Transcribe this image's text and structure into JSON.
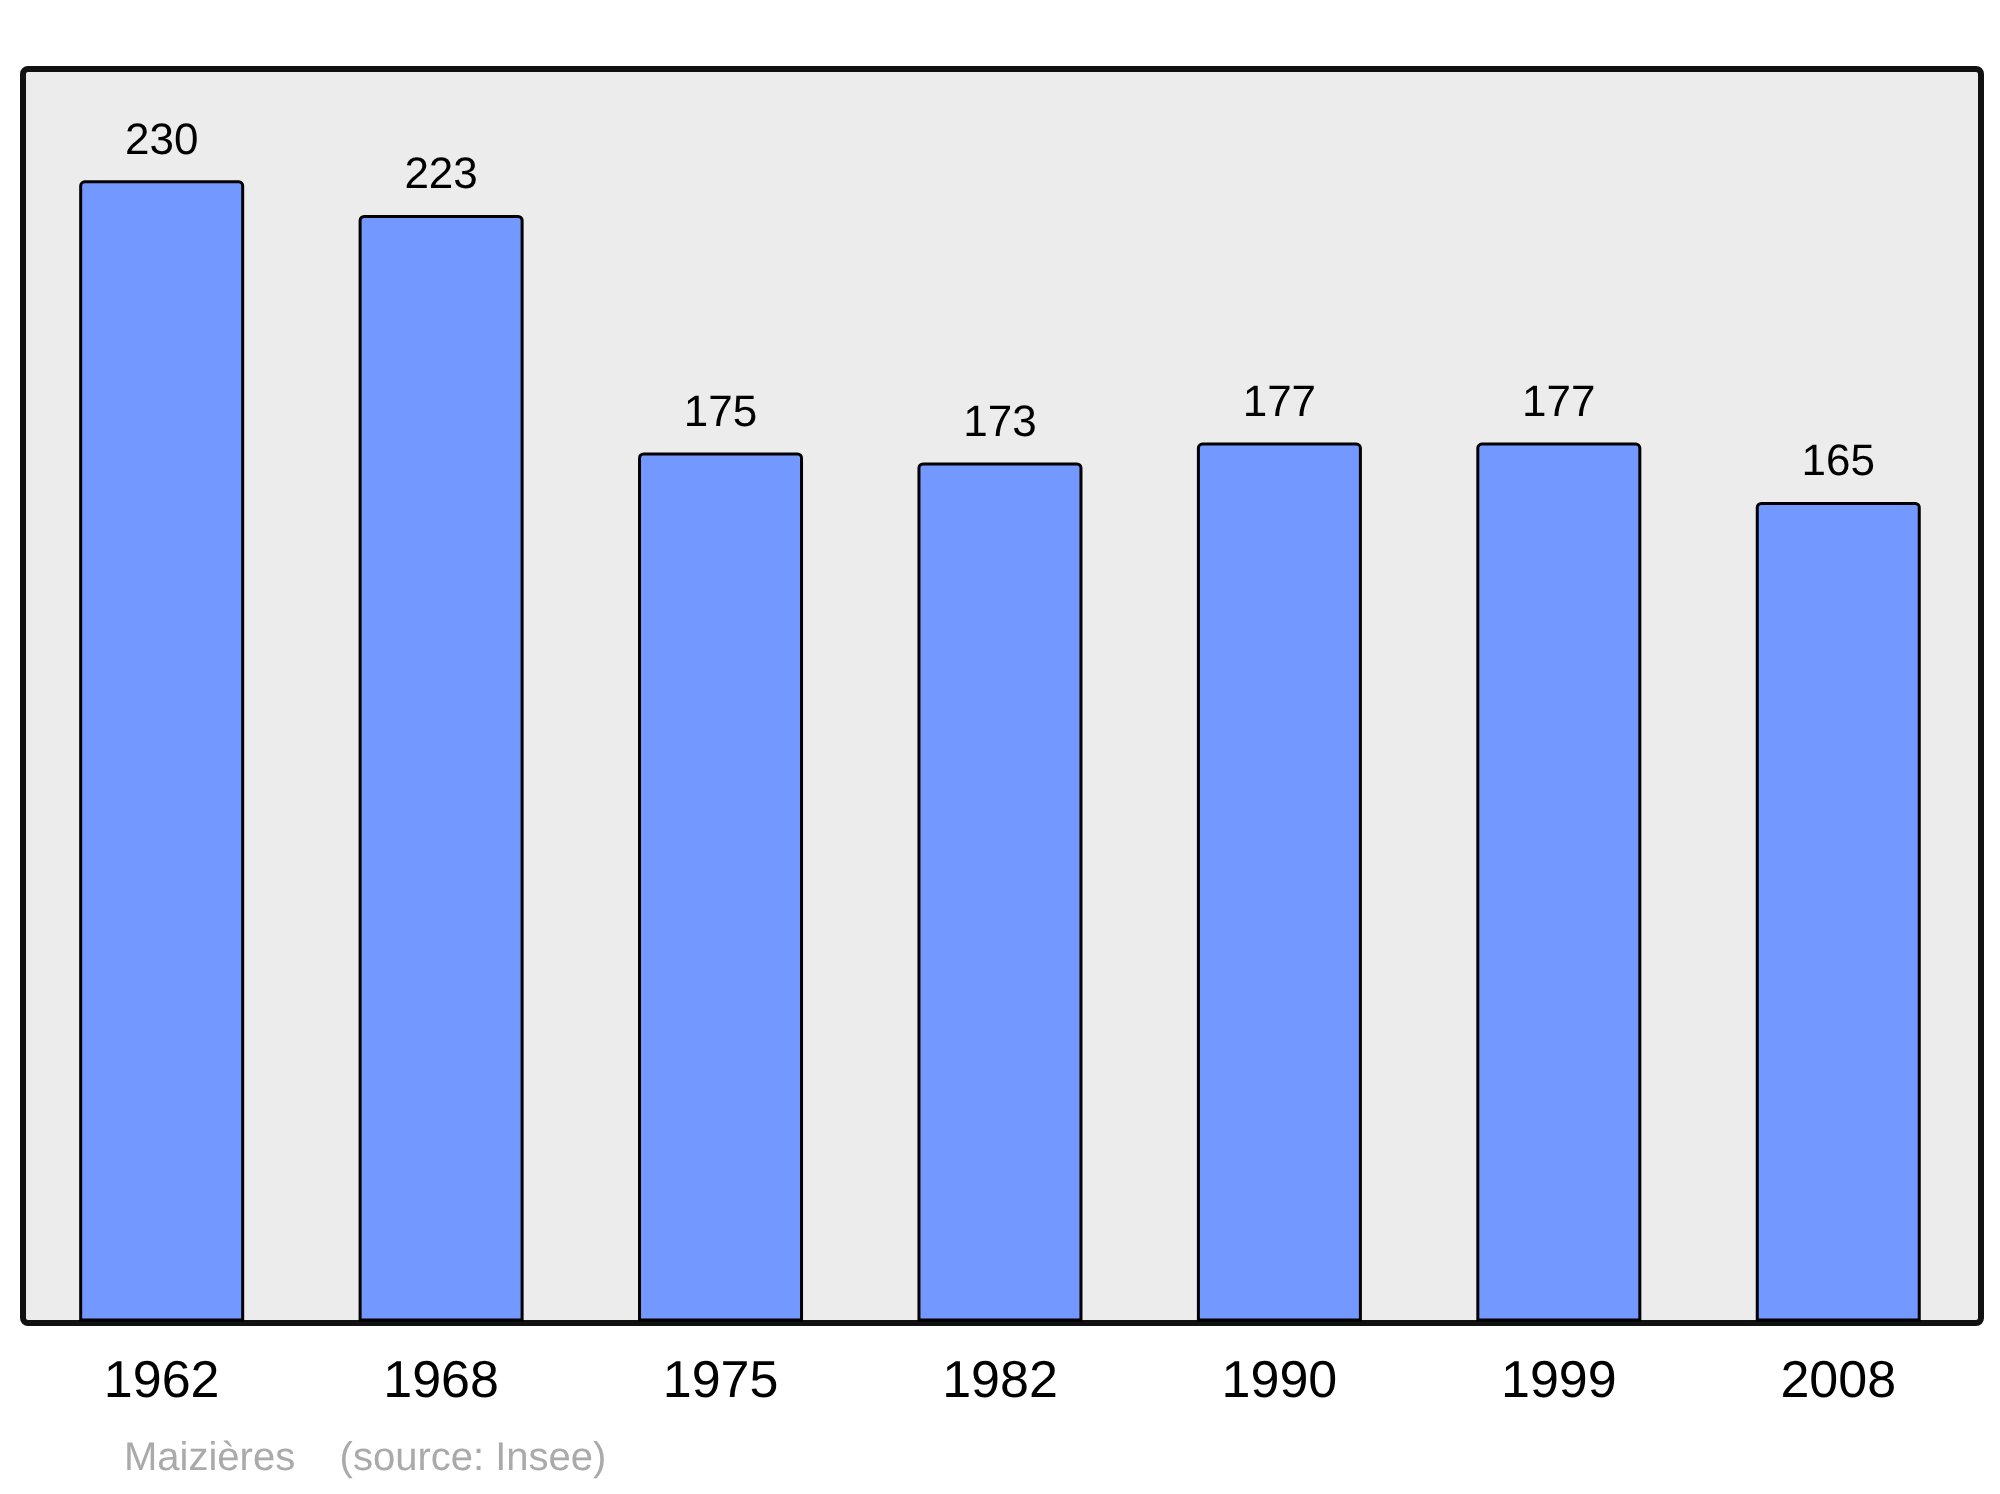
{
  "chart_data": {
    "type": "bar",
    "categories": [
      "1962",
      "1968",
      "1975",
      "1982",
      "1990",
      "1999",
      "2008"
    ],
    "values": [
      230,
      223,
      175,
      173,
      177,
      177,
      165
    ],
    "color": "#7398ff",
    "data_labels": true,
    "annotations": [
      "Maizières    (source: Insee)"
    ]
  }
}
